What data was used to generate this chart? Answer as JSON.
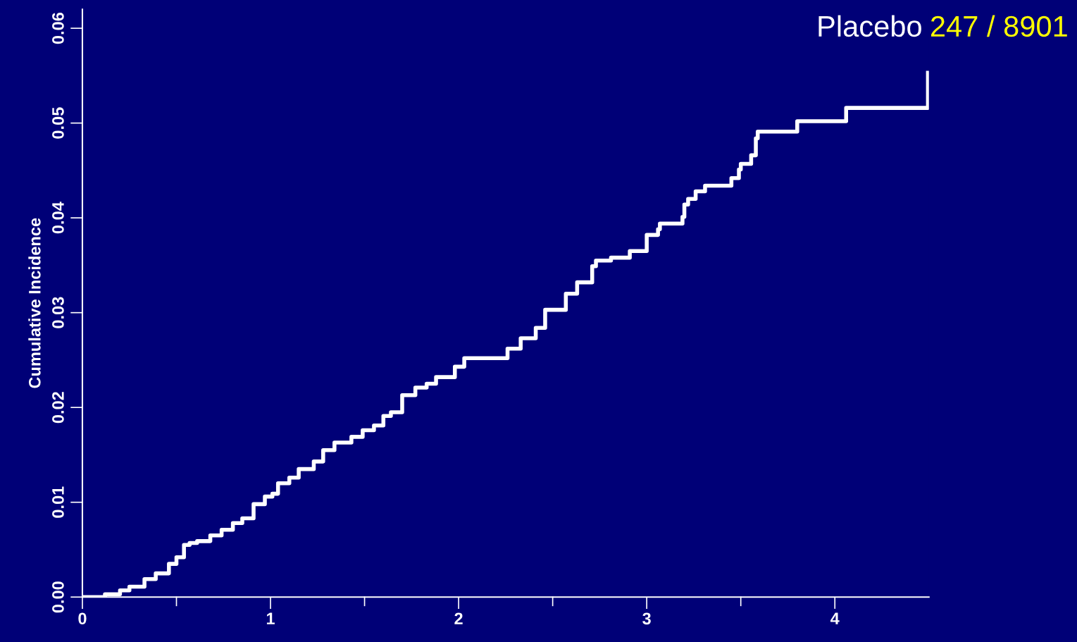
{
  "chart_data": {
    "type": "step",
    "ylabel": "Cumulative Incidence",
    "annotations": [
      "Placebo",
      "247 / 8901"
    ],
    "x": [
      0,
      0.067,
      0.12,
      0.2,
      0.25,
      0.33,
      0.39,
      0.46,
      0.5,
      0.54,
      0.57,
      0.61,
      0.68,
      0.74,
      0.8,
      0.85,
      0.91,
      0.97,
      1.01,
      1.04,
      1.1,
      1.15,
      1.23,
      1.28,
      1.34,
      1.43,
      1.49,
      1.55,
      1.6,
      1.64,
      1.7,
      1.77,
      1.83,
      1.88,
      1.98,
      2.03,
      2.18,
      2.26,
      2.33,
      2.41,
      2.46,
      2.56,
      2.57,
      2.63,
      2.71,
      2.73,
      2.8,
      2.81,
      2.9,
      2.91,
      2.99,
      3.0,
      3.04,
      3.06,
      3.07,
      3.18,
      3.19,
      3.2,
      3.22,
      3.26,
      3.31,
      3.44,
      3.45,
      3.49,
      3.5,
      3.55,
      3.555,
      3.58,
      3.59,
      3.79,
      3.8,
      4.05,
      4.06,
      4.49,
      4.495
    ],
    "series": [
      {
        "color": "#ffffff",
        "values": [
          0,
          0,
          0.0003,
          0.0007,
          0.0011,
          0.0019,
          0.0025,
          0.0035,
          0.0042,
          0.0055,
          0.0057,
          0.0059,
          0.0065,
          0.0071,
          0.0078,
          0.0083,
          0.0098,
          0.0106,
          0.0109,
          0.012,
          0.0126,
          0.0135,
          0.0143,
          0.0155,
          0.0163,
          0.0169,
          0.0176,
          0.0181,
          0.0191,
          0.0195,
          0.0213,
          0.0221,
          0.0225,
          0.0232,
          0.0243,
          0.0252,
          0.0252,
          0.0262,
          0.0273,
          0.0284,
          0.0303,
          0.0303,
          0.032,
          0.0332,
          0.0349,
          0.0355,
          0.0355,
          0.0358,
          0.0358,
          0.0365,
          0.0365,
          0.0382,
          0.0382,
          0.0388,
          0.0394,
          0.0394,
          0.0401,
          0.0414,
          0.042,
          0.0428,
          0.0434,
          0.0434,
          0.0442,
          0.0451,
          0.0457,
          0.0457,
          0.0466,
          0.0484,
          0.0491,
          0.0491,
          0.0502,
          0.0502,
          0.0516,
          0.0516,
          0.0553
        ]
      }
    ],
    "xlim": [
      0,
      4.5
    ],
    "ylim": [
      0,
      0.062
    ],
    "xticks": [
      0,
      {
        "value": 0.5,
        "label": null
      },
      1,
      {
        "value": 1.5,
        "label": null
      },
      2,
      {
        "value": 2.5,
        "label": null
      },
      3,
      {
        "value": 3.5,
        "label": null
      },
      4
    ],
    "yticks": [
      {
        "value": 0,
        "label": "0.00"
      },
      {
        "value": 0.01,
        "label": "0.01"
      },
      {
        "value": 0.02,
        "label": "0.02"
      },
      {
        "value": 0.03,
        "label": "0.03"
      },
      {
        "value": 0.04,
        "label": "0.04"
      },
      {
        "value": 0.05,
        "label": "0.05"
      },
      {
        "value": 0.06,
        "label": "0.06"
      }
    ],
    "grid": false,
    "legend": false
  }
}
